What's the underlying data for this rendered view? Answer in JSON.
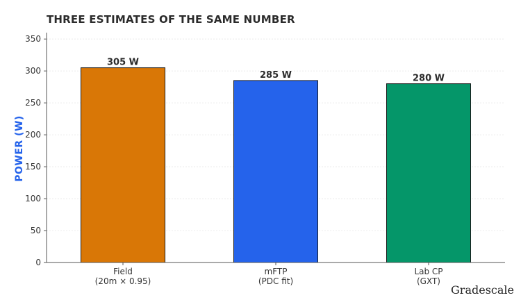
{
  "chart_data": {
    "type": "bar",
    "title": "THREE ESTIMATES OF THE SAME NUMBER",
    "xlabel": "",
    "ylabel": "POWER (W)",
    "ylim": [
      0,
      360
    ],
    "yticks": [
      0,
      50,
      100,
      150,
      200,
      250,
      300,
      350
    ],
    "grid": true,
    "categories": [
      [
        "Field",
        "(20m × 0.95)"
      ],
      [
        "mFTP",
        "(PDC fit)"
      ],
      [
        "Lab CP",
        "(GXT)"
      ]
    ],
    "values": [
      305,
      285,
      280
    ],
    "data_labels": [
      "305 W",
      "285 W",
      "280 W"
    ],
    "colors": [
      "#d97706",
      "#2563eb",
      "#059669"
    ]
  },
  "watermark": "Gradescale"
}
